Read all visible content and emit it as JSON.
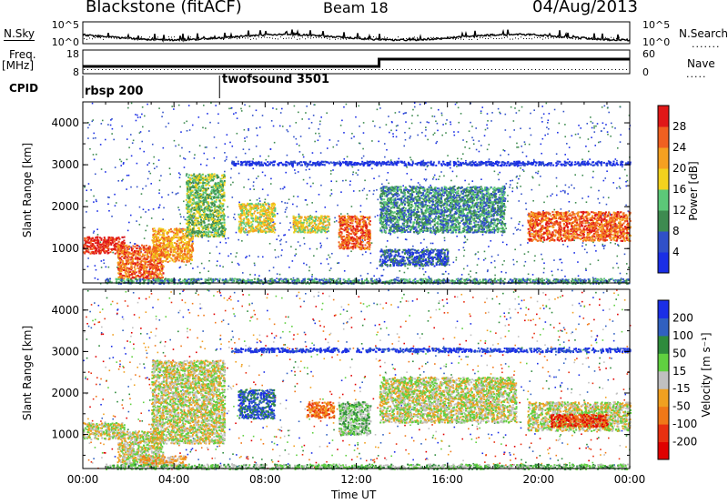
{
  "header": {
    "station": "Blackstone (fitACF)",
    "beam": "Beam 18",
    "date": "04/Aug/2013"
  },
  "noise_panel": {
    "left_label": "N.Sky",
    "right_label": "N.Search",
    "ticks_left": [
      "10^5",
      "10^0"
    ],
    "ticks_right": [
      "10^5",
      "10^0"
    ]
  },
  "freq_panel": {
    "left_label_1": "Freq.",
    "left_label_2": "[MHz]",
    "ticks_left": [
      "18",
      "8"
    ],
    "right_label": "Nave",
    "ticks_right": [
      "60",
      "0"
    ]
  },
  "cpid": {
    "label": "CPID",
    "segments": [
      {
        "name": "rbsp 200",
        "start_hour": 0
      },
      {
        "name": "twofsound 3501",
        "start_hour": 6
      }
    ]
  },
  "chart_data": [
    {
      "type": "heatmap",
      "title": "",
      "xlabel": "",
      "ylabel": "Slant Range [km]",
      "xlim": [
        0,
        24
      ],
      "ylim": [
        180,
        4500
      ],
      "yticks": [
        "1000",
        "2000",
        "3000",
        "4000"
      ],
      "colorbar": {
        "label": "Power [dB]",
        "ticks": [
          "4",
          "8",
          "12",
          "16",
          "20",
          "24",
          "28"
        ],
        "colors": [
          "#1a2ee6",
          "#3050c8",
          "#3e8b50",
          "#5cc878",
          "#f2d21e",
          "#f5a020",
          "#f06020",
          "#e01818"
        ]
      },
      "bands": [
        {
          "t": [
            0.0,
            1.8
          ],
          "r": [
            900,
            1300
          ],
          "level": 7
        },
        {
          "t": [
            1.5,
            3.5
          ],
          "r": [
            300,
            1100
          ],
          "level": 6
        },
        {
          "t": [
            3.0,
            4.8
          ],
          "r": [
            700,
            1500
          ],
          "level": 5
        },
        {
          "t": [
            4.5,
            6.2
          ],
          "r": [
            1300,
            2800
          ],
          "level": 3
        },
        {
          "t": [
            6.8,
            8.4
          ],
          "r": [
            1400,
            2100
          ],
          "level": 4
        },
        {
          "t": [
            9.2,
            10.8
          ],
          "r": [
            1400,
            1800
          ],
          "level": 4
        },
        {
          "t": [
            11.2,
            12.6
          ],
          "r": [
            1000,
            1800
          ],
          "level": 6
        },
        {
          "t": [
            13.0,
            18.5
          ],
          "r": [
            1400,
            2500
          ],
          "level": 2
        },
        {
          "t": [
            13.0,
            16.0
          ],
          "r": [
            600,
            1000
          ],
          "level": 1
        },
        {
          "t": [
            19.5,
            24.0
          ],
          "r": [
            1200,
            1900
          ],
          "level": 6
        },
        {
          "t": [
            1.0,
            24.0
          ],
          "r": [
            180,
            300
          ],
          "level": 2
        },
        {
          "t": [
            6.5,
            24.0
          ],
          "r": [
            3000,
            3100
          ],
          "level": 0
        }
      ]
    },
    {
      "type": "heatmap",
      "title": "",
      "xlabel": "Time UT",
      "ylabel": "Slant Range [km]",
      "xlim": [
        0,
        24
      ],
      "ylim": [
        180,
        4500
      ],
      "xticks": [
        "00:00",
        "04:00",
        "08:00",
        "12:00",
        "16:00",
        "20:00",
        "00:00"
      ],
      "yticks": [
        "1000",
        "2000",
        "3000",
        "4000"
      ],
      "colorbar": {
        "label": "Velocity [m s⁻¹]",
        "ticks": [
          "200",
          "100",
          "50",
          "15",
          "-15",
          "-50",
          "-100",
          "-200"
        ],
        "colors": [
          "#1a2ee6",
          "#3060c0",
          "#2e8b3c",
          "#60d040",
          "#c0c0c0",
          "#f0a020",
          "#f07818",
          "#e83010",
          "#e00000"
        ]
      },
      "bands": [
        {
          "t": [
            0.0,
            1.8
          ],
          "r": [
            900,
            1300
          ],
          "level": 4
        },
        {
          "t": [
            1.5,
            3.5
          ],
          "r": [
            300,
            1100
          ],
          "level": 4
        },
        {
          "t": [
            2.5,
            4.5
          ],
          "r": [
            250,
            500
          ],
          "level": 5
        },
        {
          "t": [
            3.0,
            6.2
          ],
          "r": [
            800,
            2800
          ],
          "level": 4
        },
        {
          "t": [
            6.8,
            8.4
          ],
          "r": [
            1400,
            2100
          ],
          "level": 1
        },
        {
          "t": [
            9.8,
            11.0
          ],
          "r": [
            1400,
            1800
          ],
          "level": 6
        },
        {
          "t": [
            11.2,
            12.6
          ],
          "r": [
            1000,
            1800
          ],
          "level": 3
        },
        {
          "t": [
            13.0,
            19.0
          ],
          "r": [
            1300,
            2400
          ],
          "level": 4
        },
        {
          "t": [
            19.5,
            24.0
          ],
          "r": [
            1100,
            1800
          ],
          "level": 4
        },
        {
          "t": [
            20.5,
            23.0
          ],
          "r": [
            1200,
            1500
          ],
          "level": 7
        },
        {
          "t": [
            1.0,
            24.0
          ],
          "r": [
            180,
            300
          ],
          "level": 3
        },
        {
          "t": [
            6.5,
            24.0
          ],
          "r": [
            3000,
            3100
          ],
          "level": 0
        }
      ]
    }
  ]
}
